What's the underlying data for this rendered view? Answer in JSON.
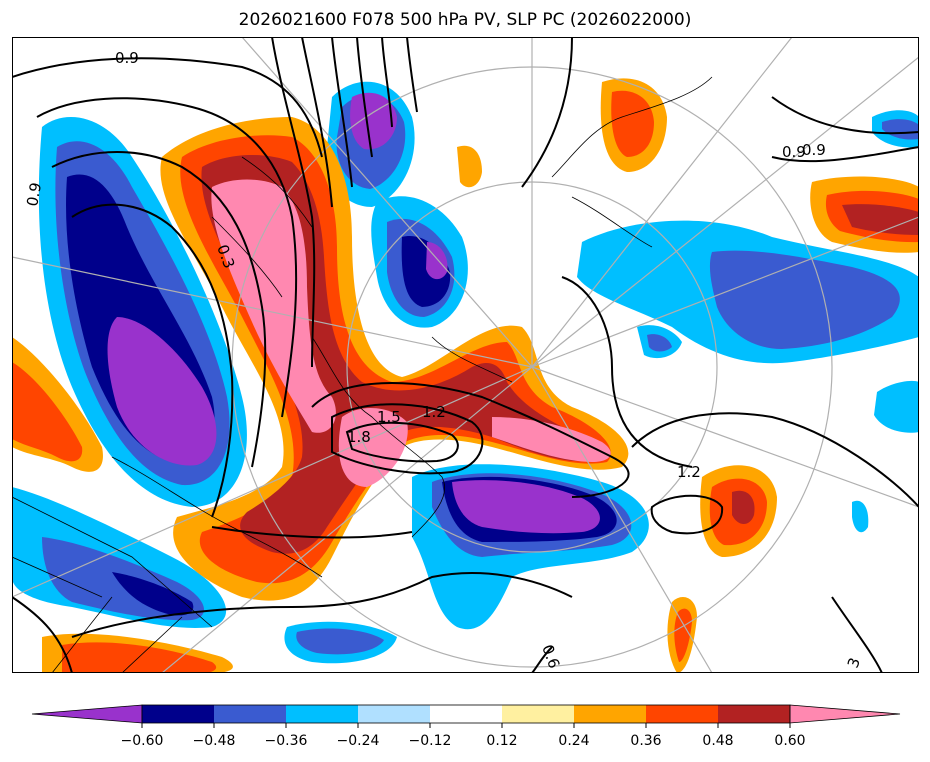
{
  "title": "2026021600 F078 500 hPa PV, SLP PC (2026022000)",
  "contour_labels": [
    "0.9",
    "0.9",
    "0.9",
    "0.3",
    "1.2",
    "1.5",
    "1.8",
    "1.2",
    "0.9",
    "0.6",
    "3"
  ],
  "colorbar": {
    "tick_labels": [
      "−0.60",
      "−0.48",
      "−0.36",
      "−0.24",
      "−0.12",
      "0.12",
      "0.24",
      "0.36",
      "0.48",
      "0.60"
    ],
    "colors": [
      "#9932cc",
      "#00008b",
      "#3a5bd0",
      "#00bfff",
      "#b0e0ff",
      "#ffffff",
      "#fff0a0",
      "#ffa500",
      "#ff4500",
      "#b22222",
      "#ff88b0"
    ]
  },
  "chart_data": {
    "type": "heatmap",
    "title": "2026021600 F078 500 hPa PV, SLP PC (2026022000)",
    "levels": [
      -0.6,
      -0.48,
      -0.36,
      -0.24,
      -0.12,
      0.12,
      0.24,
      0.36,
      0.48,
      0.6
    ],
    "colors": {
      "lt_-0.60": "#9932cc",
      "-0.60_-0.48": "#00008b",
      "-0.48_-0.36": "#3a5bd0",
      "-0.36_-0.24": "#00bfff",
      "-0.24_-0.12": "#b0e0ff",
      "-0.12_0.12": "#ffffff",
      "0.12_0.24": "#fff0a0",
      "0.24_0.36": "#ffa500",
      "0.36_0.48": "#ff4500",
      "0.48_0.60": "#b22222",
      "gt_0.60": "#ff88b0"
    },
    "contour_values": [
      0.3,
      0.6,
      0.9,
      1.2,
      1.5,
      1.8,
      3
    ],
    "colorbar_extend": "both"
  }
}
